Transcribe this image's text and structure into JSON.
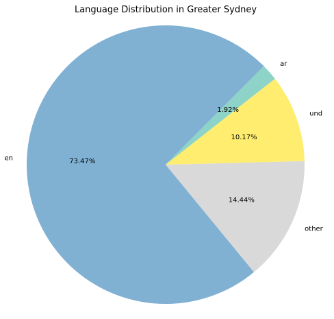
{
  "chart_data": {
    "type": "pie",
    "title": "Language Distribution in Greater Sydney",
    "start_angle_deg": 45,
    "direction": "counterclockwise",
    "slices": [
      {
        "label": "en",
        "value": 73.47,
        "pct_label": "73.47%",
        "color": "#80b1d3"
      },
      {
        "label": "other",
        "value": 14.44,
        "pct_label": "14.44%",
        "color": "#d9d9d9"
      },
      {
        "label": "und",
        "value": 10.17,
        "pct_label": "10.17%",
        "color": "#ffed6f"
      },
      {
        "label": "ar",
        "value": 1.92,
        "pct_label": "1.92%",
        "color": "#8dd3c7"
      }
    ]
  }
}
